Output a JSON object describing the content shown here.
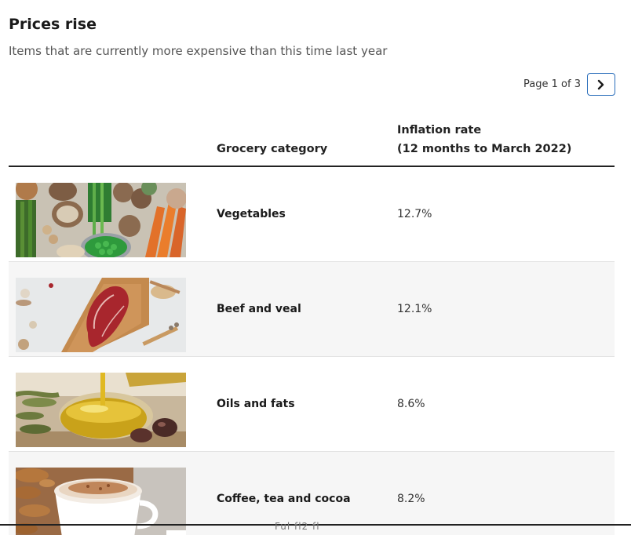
{
  "header": {
    "title": "Prices rise",
    "subtitle": "Items that are currently more expensive than this time last year"
  },
  "pager": {
    "label": "Page 1 of 3",
    "next_icon": "chevron-right-icon"
  },
  "table": {
    "columns": {
      "category": "Grocery category",
      "rate_line1": "Inflation rate",
      "rate_line2": "(12 months to March 2022)"
    },
    "rows": [
      {
        "category": "Vegetables",
        "rate": "12.7%",
        "image": "vegetables-photo"
      },
      {
        "category": "Beef and veal",
        "rate": "12.1%",
        "image": "beef-photo"
      },
      {
        "category": "Oils and fats",
        "rate": "8.6%",
        "image": "oil-photo"
      },
      {
        "category": "Coffee, tea and cocoa",
        "rate": "8.2%",
        "image": "coffee-photo"
      }
    ]
  },
  "footer": {
    "partial_text": "Ful fl2 fl"
  },
  "colors": {
    "accent": "#2a6ebb",
    "rule": "#222222",
    "row_alt": "#f6f6f6"
  }
}
